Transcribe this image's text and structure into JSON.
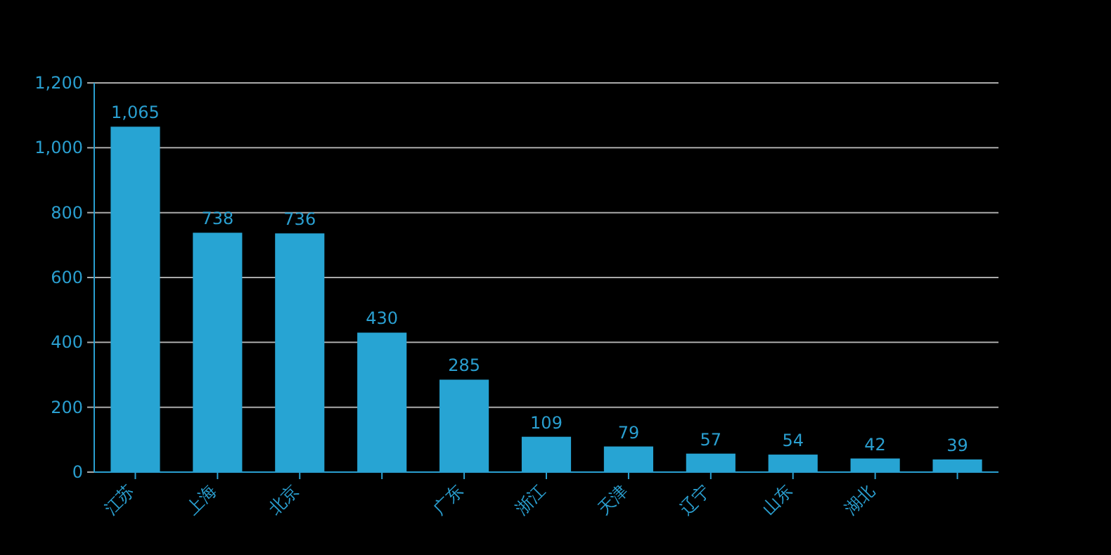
{
  "chart_data": {
    "type": "bar",
    "categories": [
      "江苏",
      "上海",
      "北京",
      null,
      "广东",
      "浙江",
      "天津",
      "辽宁",
      "山东",
      "湖北",
      null
    ],
    "values": [
      1065,
      738,
      736,
      430,
      285,
      109,
      79,
      57,
      54,
      42,
      39
    ],
    "color": "#27a4d3",
    "ylim": [
      0,
      1200
    ],
    "yticks": [
      0,
      {
        "value": 200,
        "label": "200"
      },
      {
        "value": 400,
        "label": "400"
      },
      {
        "value": 600,
        "label": "600"
      },
      {
        "value": 800,
        "label": "800"
      },
      {
        "value": 1000,
        "label": "1,000"
      },
      {
        "value": 1200,
        "label": "1,200"
      }
    ],
    "value_labels": [
      "1,065",
      "738",
      "736",
      "430",
      "285",
      "109",
      "79",
      "57",
      "54",
      "42",
      "39"
    ],
    "grid": "y"
  }
}
